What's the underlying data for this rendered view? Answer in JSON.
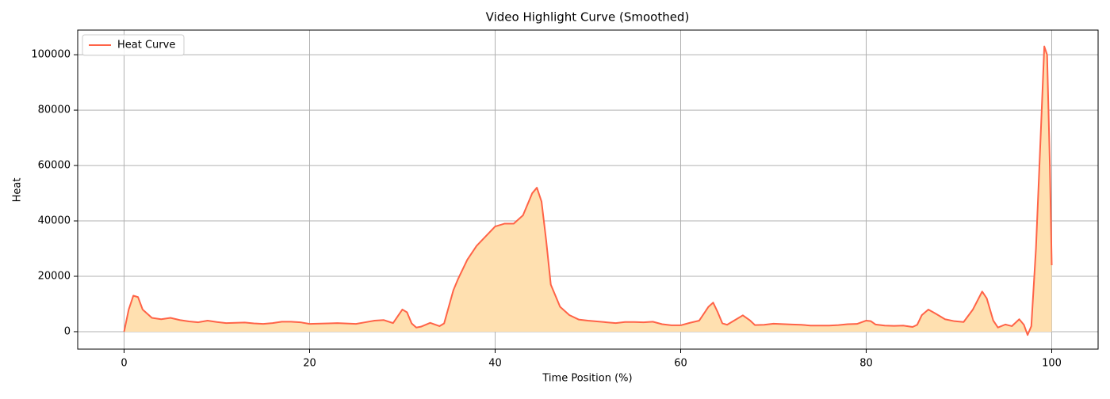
{
  "chart_data": {
    "type": "area_line",
    "title": "Video Highlight Curve (Smoothed)",
    "x_label": "Time Position (%)",
    "y_label": "Heat",
    "x": [
      0,
      0.5,
      1,
      1.5,
      2,
      3,
      4,
      5,
      6,
      7,
      8,
      9,
      10,
      11,
      12,
      13,
      14,
      15,
      16,
      17,
      18,
      19,
      20,
      22,
      23,
      25,
      26,
      27,
      28,
      29,
      30,
      30.5,
      31,
      31.5,
      32,
      33,
      34,
      34.5,
      35,
      35.5,
      36,
      37,
      38,
      39,
      40,
      41,
      42,
      43,
      44,
      44.5,
      45,
      45.5,
      46,
      47,
      48,
      49,
      50,
      52,
      53,
      54,
      55,
      56,
      57,
      58,
      59,
      60,
      61,
      62,
      63,
      63.5,
      64,
      64.5,
      65,
      66,
      66.7,
      67.5,
      68,
      69,
      70,
      72,
      73,
      74,
      76,
      77,
      78,
      79,
      80,
      80.5,
      81,
      82,
      83,
      84,
      85,
      85.5,
      86,
      86.7,
      87.5,
      88.5,
      89.5,
      90.5,
      91.5,
      92.5,
      93,
      93.7,
      94.2,
      95,
      95.7,
      96.5,
      97,
      97.4,
      97.8,
      98.3,
      98.8,
      99.2,
      99.5,
      99.8,
      100
    ],
    "series": [
      {
        "name": "Heat Curve",
        "color": "#ff6347",
        "fill_color": "#ffe0b0",
        "values": [
          0,
          8000,
          13000,
          12500,
          8000,
          5000,
          4500,
          5000,
          4200,
          3700,
          3400,
          4000,
          3500,
          3100,
          3200,
          3300,
          3000,
          2800,
          3100,
          3600,
          3600,
          3400,
          2800,
          3000,
          3100,
          2800,
          3400,
          4000,
          4200,
          3100,
          8000,
          7000,
          3000,
          1500,
          1800,
          3200,
          2000,
          3000,
          9000,
          15000,
          19000,
          26000,
          31000,
          34500,
          38000,
          39000,
          39000,
          42000,
          50000,
          52000,
          47000,
          33000,
          17000,
          9000,
          6000,
          4400,
          4000,
          3400,
          3100,
          3500,
          3500,
          3400,
          3600,
          2700,
          2300,
          2300,
          3200,
          4000,
          9000,
          10500,
          7000,
          3000,
          2500,
          4500,
          5900,
          4000,
          2400,
          2500,
          2900,
          2600,
          2500,
          2200,
          2200,
          2400,
          2700,
          2800,
          4000,
          3800,
          2600,
          2200,
          2100,
          2200,
          1700,
          2500,
          6000,
          8000,
          6500,
          4500,
          3800,
          3500,
          8000,
          14500,
          12000,
          4000,
          1500,
          2600,
          2000,
          4500,
          2500,
          -1200,
          2000,
          30000,
          70000,
          103000,
          100000,
          60000,
          24000
        ]
      }
    ],
    "xlim": [
      -5,
      105
    ],
    "xticks": [
      0,
      20,
      40,
      60,
      80,
      100
    ],
    "ylim": [
      -6300,
      108900
    ],
    "yticks": [
      0,
      20000,
      40000,
      60000,
      80000,
      100000
    ],
    "grid": true,
    "legend": "upper-left"
  }
}
